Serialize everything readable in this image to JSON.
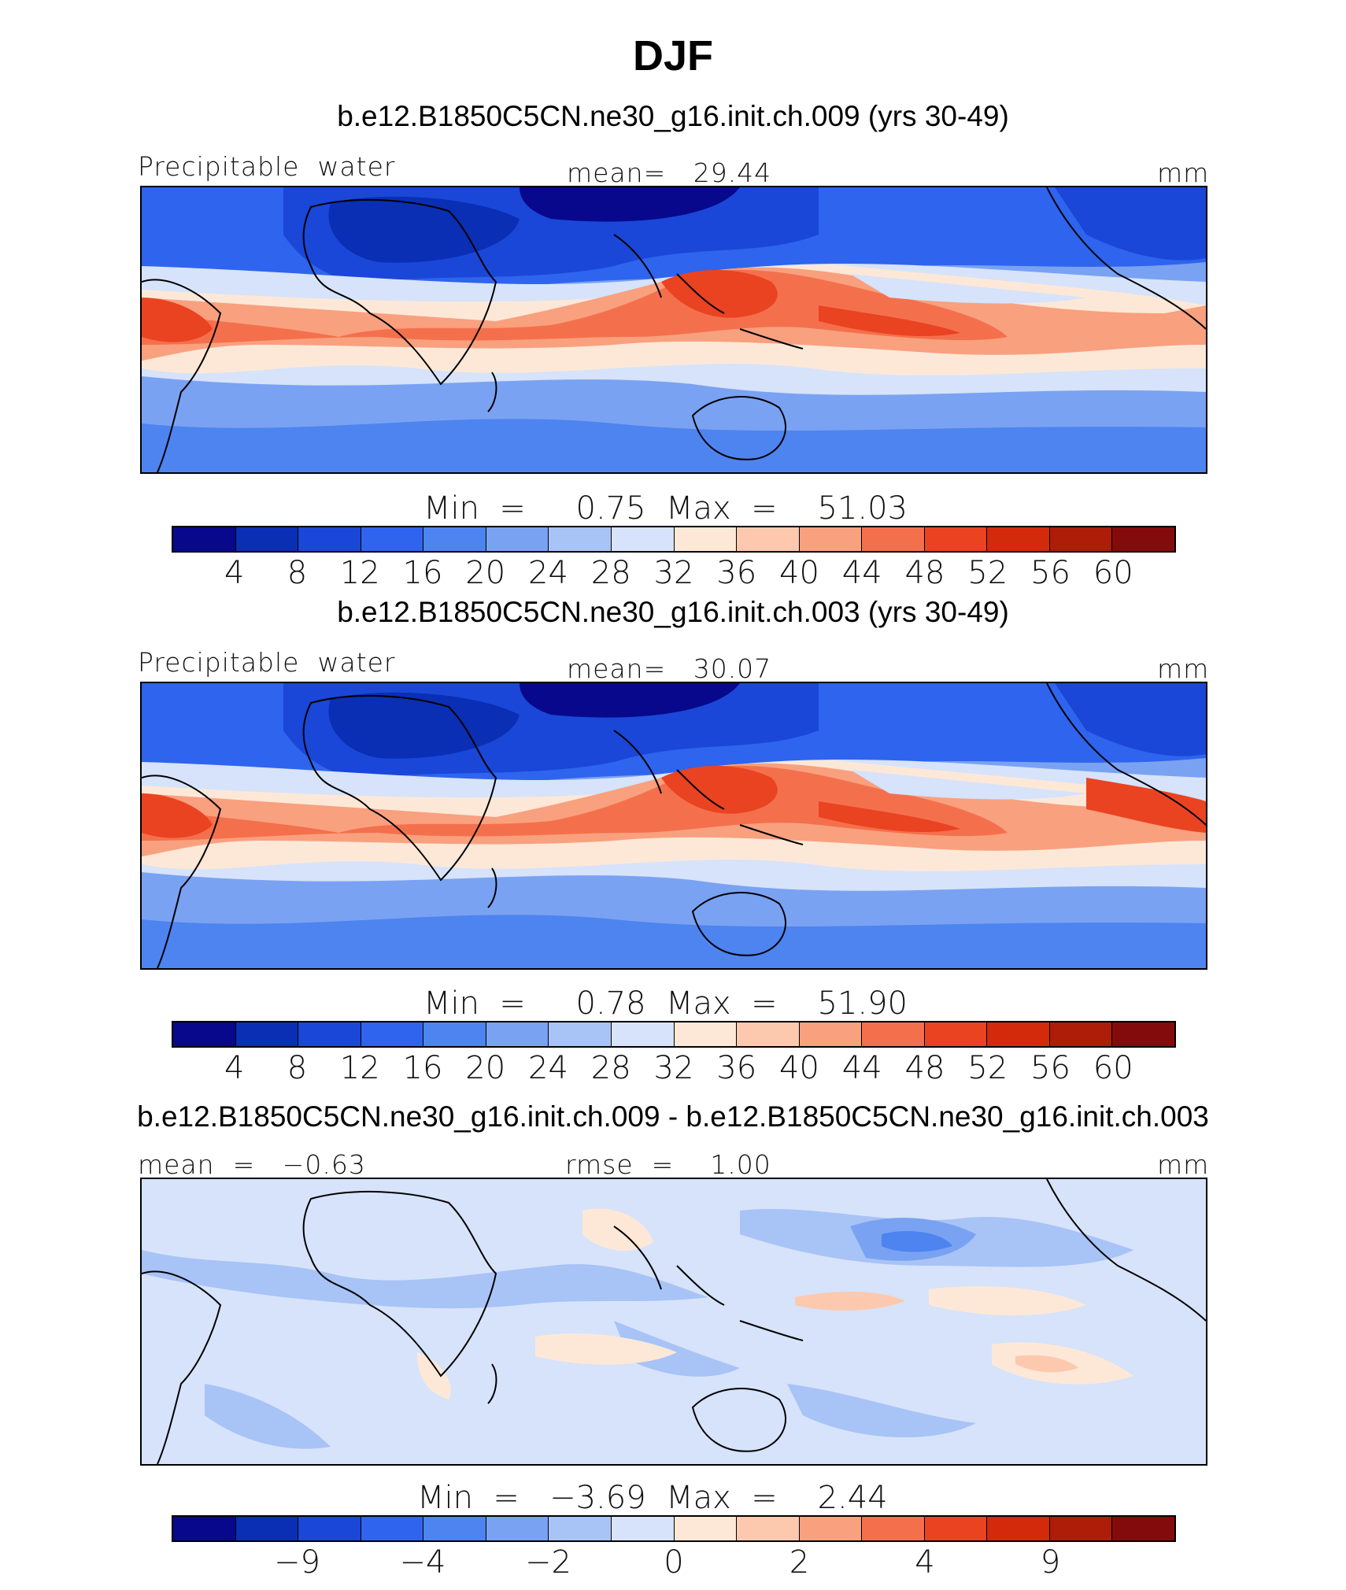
{
  "figure_title": "DJF",
  "palette": [
    "#08088c",
    "#0a2fb5",
    "#1a47d8",
    "#2e64ee",
    "#4d84f0",
    "#7aa2f2",
    "#a8c3f6",
    "#d6e3fa",
    "#fde8d8",
    "#fcc9ae",
    "#f9a07e",
    "#f4704c",
    "#ea4322",
    "#d42a0c",
    "#ad1d08",
    "#840b0b"
  ],
  "land_outline_color": "#000000",
  "panels": [
    {
      "case_title": "b.e12.B1850C5CN.ne30_g16.init.ch.009 (yrs 30-49)",
      "left_label": "Precipitable  water",
      "center_label": "mean=   29.44",
      "right_label": "mm",
      "minmax": "Min  =     0.75  Max  =    51.03",
      "ticks": [
        "4",
        "8",
        "12",
        "16",
        "20",
        "24",
        "28",
        "32",
        "36",
        "40",
        "44",
        "48",
        "52",
        "56",
        "60"
      ]
    },
    {
      "case_title": "b.e12.B1850C5CN.ne30_g16.init.ch.003 (yrs 30-49)",
      "left_label": "Precipitable  water",
      "center_label": "mean=   30.07",
      "right_label": "mm",
      "minmax": "Min  =     0.78  Max  =    51.90",
      "ticks": [
        "4",
        "8",
        "12",
        "16",
        "20",
        "24",
        "28",
        "32",
        "36",
        "40",
        "44",
        "48",
        "52",
        "56",
        "60"
      ]
    },
    {
      "case_title": "b.e12.B1850C5CN.ne30_g16.init.ch.009 - b.e12.B1850C5CN.ne30_g16.init.ch.003",
      "left_label": "mean  =   −0.63",
      "center_label": "rmse  =    1.00",
      "right_label": "mm",
      "minmax": "Min  =   −3.69  Max  =    2.44",
      "ticks": [
        "−9",
        "−4",
        "−2",
        "0",
        "2",
        "4",
        "9"
      ]
    }
  ],
  "chart_data": [
    {
      "type": "heatmap",
      "title": "b.e12.B1850C5CN.ne30_g16.init.ch.009 (yrs 30-49)",
      "variable": "Precipitable  water",
      "units": "mm",
      "mean": 29.44,
      "min": 0.75,
      "max": 51.03,
      "contour_levels": [
        4,
        8,
        12,
        16,
        20,
        24,
        28,
        32,
        36,
        40,
        44,
        48,
        52,
        56,
        60
      ],
      "lon_range": [
        -20,
        290
      ],
      "lat_range": [
        -40,
        40
      ],
      "projection": "cylindrical equidistant"
    },
    {
      "type": "heatmap",
      "title": "b.e12.B1850C5CN.ne30_g16.init.ch.003 (yrs 30-49)",
      "variable": "Precipitable  water",
      "units": "mm",
      "mean": 30.07,
      "min": 0.78,
      "max": 51.9,
      "contour_levels": [
        4,
        8,
        12,
        16,
        20,
        24,
        28,
        32,
        36,
        40,
        44,
        48,
        52,
        56,
        60
      ],
      "lon_range": [
        -20,
        290
      ],
      "lat_range": [
        -40,
        40
      ],
      "projection": "cylindrical equidistant"
    },
    {
      "type": "heatmap",
      "title": "b.e12.B1850C5CN.ne30_g16.init.ch.009 - b.e12.B1850C5CN.ne30_g16.init.ch.003",
      "units": "mm",
      "mean": -0.63,
      "rmse": 1.0,
      "min": -3.69,
      "max": 2.44,
      "contour_levels": [
        -9,
        -4,
        -2,
        0,
        2,
        4,
        9
      ],
      "lon_range": [
        -20,
        290
      ],
      "lat_range": [
        -40,
        40
      ],
      "projection": "cylindrical equidistant"
    }
  ]
}
